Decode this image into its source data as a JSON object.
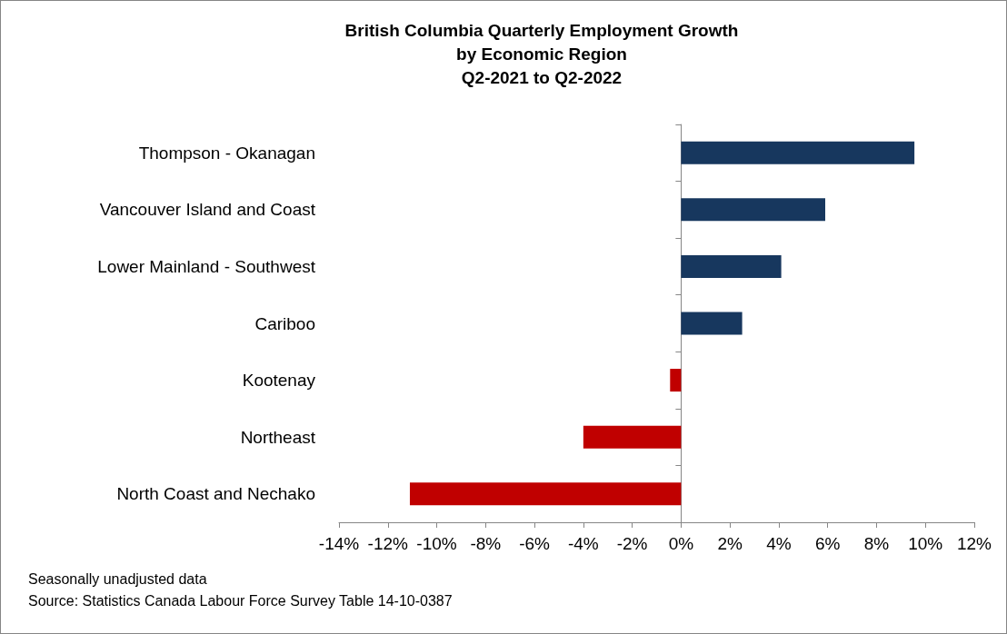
{
  "chart_data": {
    "type": "bar",
    "orientation": "horizontal",
    "title": "British Columbia Quarterly Employment Growth\nby Economic Region\nQ2-2021 to Q2-2022",
    "categories": [
      "Thompson - Okanagan",
      "Vancouver Island and Coast",
      "Lower Mainland - Southwest",
      "Cariboo",
      "Kootenay",
      "Northeast",
      "North Coast and Nechako"
    ],
    "values": [
      9.55,
      5.9,
      4.1,
      2.5,
      -0.45,
      -4.0,
      -11.1
    ],
    "colors": [
      "#17375e",
      "#17375e",
      "#17375e",
      "#17375e",
      "#c00000",
      "#c00000",
      "#c00000"
    ],
    "xlim": [
      -14,
      12
    ],
    "xticks": [
      {
        "value": -14,
        "label": "-14%"
      },
      {
        "value": -12,
        "label": "-12%"
      },
      {
        "value": -10,
        "label": "-10%"
      },
      {
        "value": -8,
        "label": "-8%"
      },
      {
        "value": -6,
        "label": "-6%"
      },
      {
        "value": -4,
        "label": "-4%"
      },
      {
        "value": -2,
        "label": "-2%"
      },
      {
        "value": 0,
        "label": "0%"
      },
      {
        "value": 2,
        "label": "2%"
      },
      {
        "value": 4,
        "label": "4%"
      },
      {
        "value": 6,
        "label": "6%"
      },
      {
        "value": 8,
        "label": "8%"
      },
      {
        "value": 10,
        "label": "10%"
      },
      {
        "value": 12,
        "label": "12%"
      }
    ],
    "annotations": [
      "Seasonally unadjusted data",
      "Source: Statistics Canada Labour Force Survey Table 14-10-0387"
    ]
  }
}
